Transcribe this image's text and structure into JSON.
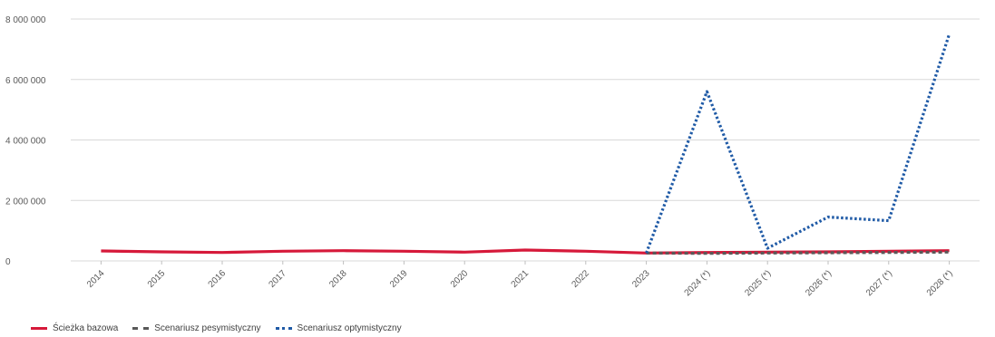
{
  "chart_data": {
    "type": "line",
    "categories": [
      "2014",
      "2015",
      "2016",
      "2017",
      "2018",
      "2019",
      "2020",
      "2021",
      "2022",
      "2023",
      "2024 (*)",
      "2025 (*)",
      "2026 (*)",
      "2027 (*)",
      "2028 (*)"
    ],
    "ylim": [
      0,
      8000000
    ],
    "yticks": [
      0,
      2000000,
      4000000,
      6000000,
      8000000
    ],
    "ytick_labels": [
      "0",
      "2 000 000",
      "4 000 000",
      "6 000 000",
      "8 000 000"
    ],
    "grid": true,
    "legend_position": "bottom-left",
    "series": [
      {
        "name": "Ścieżka bazowa",
        "color": "#d6193a",
        "style": "solid",
        "values": [
          330000,
          300000,
          280000,
          320000,
          340000,
          320000,
          290000,
          360000,
          320000,
          260000,
          280000,
          290000,
          300000,
          320000,
          340000
        ]
      },
      {
        "name": "Scenariusz pesymistyczny",
        "color": "#595959",
        "style": "dashed",
        "values": [
          null,
          null,
          null,
          null,
          null,
          null,
          null,
          null,
          null,
          260000,
          250000,
          260000,
          270000,
          280000,
          290000
        ]
      },
      {
        "name": "Scenariusz optymistyczny",
        "color": "#1f5aa6",
        "style": "dotted",
        "values": [
          null,
          null,
          null,
          null,
          null,
          null,
          null,
          null,
          null,
          260000,
          5600000,
          420000,
          1450000,
          1330000,
          7500000
        ]
      }
    ]
  }
}
